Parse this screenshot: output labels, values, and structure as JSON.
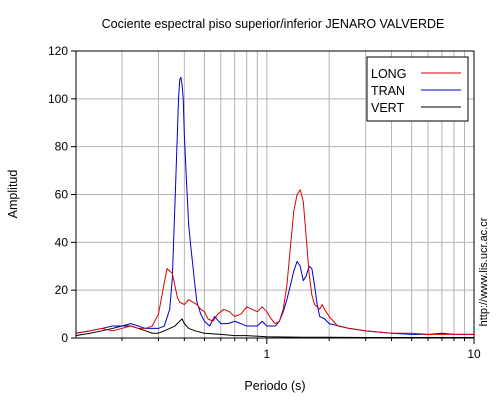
{
  "chart_data": {
    "type": "line",
    "title": "Cociente espectral piso superior/inferior  JENARO VALVERDE",
    "xlabel": "Periodo (s)",
    "ylabel": "Amplitud",
    "xscale": "log",
    "xlim": [
      0.12,
      10
    ],
    "ylim": [
      0,
      120
    ],
    "yticks": [
      "0",
      "20",
      "40",
      "60",
      "80",
      "100",
      "120"
    ],
    "xticks": [
      {
        "value": 1,
        "label": "1"
      },
      {
        "value": 10,
        "label": "10"
      }
    ],
    "grid": true,
    "legend_position": "top-right",
    "credit": "http://www.lis.ucr.ac.cr",
    "series": [
      {
        "name": "LONG",
        "color": "#dd0000",
        "points": [
          [
            0.12,
            2
          ],
          [
            0.14,
            3
          ],
          [
            0.16,
            4
          ],
          [
            0.18,
            3
          ],
          [
            0.2,
            4
          ],
          [
            0.22,
            5
          ],
          [
            0.24,
            4
          ],
          [
            0.26,
            4
          ],
          [
            0.28,
            5
          ],
          [
            0.3,
            10
          ],
          [
            0.32,
            23
          ],
          [
            0.33,
            29
          ],
          [
            0.35,
            27
          ],
          [
            0.36,
            22
          ],
          [
            0.37,
            17
          ],
          [
            0.38,
            15
          ],
          [
            0.4,
            14
          ],
          [
            0.42,
            16
          ],
          [
            0.44,
            15
          ],
          [
            0.46,
            14
          ],
          [
            0.48,
            12
          ],
          [
            0.5,
            11
          ],
          [
            0.52,
            8
          ],
          [
            0.55,
            7
          ],
          [
            0.58,
            10
          ],
          [
            0.62,
            12
          ],
          [
            0.66,
            11
          ],
          [
            0.7,
            9
          ],
          [
            0.75,
            10
          ],
          [
            0.8,
            13
          ],
          [
            0.85,
            12
          ],
          [
            0.9,
            11
          ],
          [
            0.95,
            13
          ],
          [
            1.0,
            11
          ],
          [
            1.05,
            8
          ],
          [
            1.1,
            6
          ],
          [
            1.15,
            7
          ],
          [
            1.2,
            12
          ],
          [
            1.25,
            22
          ],
          [
            1.3,
            38
          ],
          [
            1.35,
            53
          ],
          [
            1.4,
            60
          ],
          [
            1.45,
            62
          ],
          [
            1.5,
            57
          ],
          [
            1.55,
            42
          ],
          [
            1.6,
            27
          ],
          [
            1.65,
            18
          ],
          [
            1.7,
            14
          ],
          [
            1.75,
            13
          ],
          [
            1.8,
            12
          ],
          [
            1.85,
            14
          ],
          [
            1.9,
            12
          ],
          [
            2.0,
            9
          ],
          [
            2.2,
            5
          ],
          [
            2.5,
            4
          ],
          [
            3,
            3
          ],
          [
            4,
            2
          ],
          [
            5,
            2
          ],
          [
            6,
            1.5
          ],
          [
            8,
            1.5
          ],
          [
            10,
            1.5
          ]
        ]
      },
      {
        "name": "TRAN",
        "color": "#0000cc",
        "points": [
          [
            0.12,
            2
          ],
          [
            0.14,
            3
          ],
          [
            0.16,
            4
          ],
          [
            0.18,
            5
          ],
          [
            0.2,
            5
          ],
          [
            0.22,
            6
          ],
          [
            0.24,
            5
          ],
          [
            0.26,
            4
          ],
          [
            0.28,
            4
          ],
          [
            0.3,
            4
          ],
          [
            0.32,
            5
          ],
          [
            0.34,
            12
          ],
          [
            0.35,
            25
          ],
          [
            0.36,
            55
          ],
          [
            0.37,
            85
          ],
          [
            0.375,
            100
          ],
          [
            0.38,
            108
          ],
          [
            0.385,
            109
          ],
          [
            0.39,
            106
          ],
          [
            0.395,
            100
          ],
          [
            0.4,
            85
          ],
          [
            0.41,
            65
          ],
          [
            0.42,
            47
          ],
          [
            0.43,
            38
          ],
          [
            0.44,
            30
          ],
          [
            0.45,
            22
          ],
          [
            0.46,
            15
          ],
          [
            0.48,
            10
          ],
          [
            0.5,
            7
          ],
          [
            0.53,
            5
          ],
          [
            0.56,
            9
          ],
          [
            0.6,
            6
          ],
          [
            0.65,
            6
          ],
          [
            0.7,
            7
          ],
          [
            0.75,
            6
          ],
          [
            0.8,
            5
          ],
          [
            0.85,
            5
          ],
          [
            0.9,
            5
          ],
          [
            0.95,
            7
          ],
          [
            1.0,
            5
          ],
          [
            1.05,
            5
          ],
          [
            1.1,
            5
          ],
          [
            1.15,
            7
          ],
          [
            1.2,
            11
          ],
          [
            1.25,
            16
          ],
          [
            1.3,
            22
          ],
          [
            1.35,
            28
          ],
          [
            1.4,
            32
          ],
          [
            1.45,
            30
          ],
          [
            1.5,
            24
          ],
          [
            1.55,
            26
          ],
          [
            1.6,
            30
          ],
          [
            1.65,
            29
          ],
          [
            1.7,
            22
          ],
          [
            1.75,
            14
          ],
          [
            1.8,
            9
          ],
          [
            1.9,
            8
          ],
          [
            2.0,
            6
          ],
          [
            2.5,
            4
          ],
          [
            3,
            3
          ],
          [
            4,
            2
          ],
          [
            5,
            1.5
          ],
          [
            6,
            1.5
          ],
          [
            7,
            2
          ],
          [
            8,
            1.5
          ],
          [
            10,
            1.5
          ]
        ]
      },
      {
        "name": "VERT",
        "color": "#000000",
        "points": [
          [
            0.12,
            1
          ],
          [
            0.14,
            2
          ],
          [
            0.16,
            3
          ],
          [
            0.18,
            4
          ],
          [
            0.2,
            5
          ],
          [
            0.22,
            5
          ],
          [
            0.24,
            4
          ],
          [
            0.26,
            3
          ],
          [
            0.28,
            2
          ],
          [
            0.3,
            2
          ],
          [
            0.32,
            3
          ],
          [
            0.34,
            4
          ],
          [
            0.36,
            5
          ],
          [
            0.38,
            7
          ],
          [
            0.39,
            8
          ],
          [
            0.4,
            6
          ],
          [
            0.42,
            4
          ],
          [
            0.45,
            3
          ],
          [
            0.5,
            2
          ],
          [
            0.6,
            1.5
          ],
          [
            0.7,
            1
          ],
          [
            0.8,
            1
          ],
          [
            1,
            0.5
          ],
          [
            1.5,
            0.3
          ],
          [
            2,
            0.3
          ],
          [
            3,
            0.2
          ],
          [
            5,
            0.2
          ],
          [
            10,
            0.2
          ]
        ]
      }
    ]
  }
}
